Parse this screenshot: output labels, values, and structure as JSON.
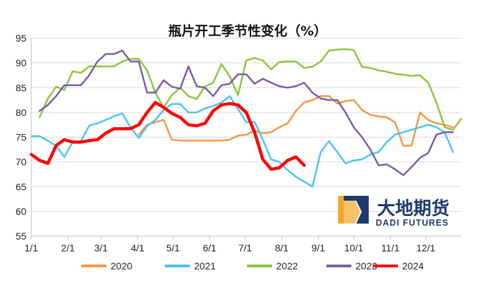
{
  "chart_data": {
    "type": "line",
    "title": "瓶片开工季节性变化（%）",
    "xlabel": "",
    "ylabel": "",
    "ylim": [
      55,
      95
    ],
    "yticks": [
      55,
      60,
      65,
      70,
      75,
      80,
      85,
      90,
      95
    ],
    "xlim": [
      0,
      52
    ],
    "xticks": [
      {
        "label": "1/1",
        "week": 0
      },
      {
        "label": "2/1",
        "week": 4.43
      },
      {
        "label": "3/1",
        "week": 8.43
      },
      {
        "label": "4/1",
        "week": 12.86
      },
      {
        "label": "5/1",
        "week": 17.14
      },
      {
        "label": "6/1",
        "week": 21.57
      },
      {
        "label": "7/1",
        "week": 25.86
      },
      {
        "label": "8/1",
        "week": 30.29
      },
      {
        "label": "9/1",
        "week": 34.71
      },
      {
        "label": "10/1",
        "week": 39
      },
      {
        "label": "11/1",
        "week": 43.43
      },
      {
        "label": "12/1",
        "week": 47.71
      }
    ],
    "grid": "horizontal",
    "legend_position": "bottom",
    "series": [
      {
        "name": "2020",
        "color": "#f79646",
        "width": 2.5,
        "x": [
          13,
          14,
          15,
          16,
          17,
          18,
          19,
          20,
          21,
          22,
          23,
          24,
          25,
          26,
          27,
          28,
          29,
          30,
          31,
          32,
          33,
          34,
          35,
          36,
          37,
          38,
          39,
          40,
          41,
          42,
          43,
          44,
          45,
          46,
          47,
          48,
          49,
          50,
          51
        ],
        "y": [
          75.5,
          77.5,
          78,
          78.5,
          74.5,
          74.3,
          74.3,
          74.3,
          74.3,
          74.3,
          74.3,
          74.5,
          75.3,
          75.5,
          76.3,
          75.8,
          76,
          77,
          77.8,
          80.3,
          82,
          82.5,
          83.3,
          83.3,
          81.8,
          82.3,
          82.5,
          80.5,
          79.5,
          79.2,
          79,
          78,
          73.2,
          73.3,
          80,
          78.5,
          77.8,
          77.5,
          77
        ]
      },
      {
        "name": "2021",
        "color": "#4dc3f5",
        "width": 2.5,
        "x": [
          0,
          1,
          2,
          3,
          4,
          5,
          6,
          7,
          8,
          9,
          10,
          11,
          12,
          13,
          14,
          15,
          16,
          17,
          18,
          19,
          20,
          21,
          22,
          23,
          24,
          25,
          26,
          27,
          28,
          29,
          30,
          31,
          32,
          33,
          34,
          35,
          36,
          37,
          38,
          39,
          40,
          41,
          42,
          43,
          44,
          45,
          46,
          47,
          48,
          49,
          50,
          51
        ],
        "y": [
          75.2,
          75.2,
          74.3,
          73.2,
          71,
          74,
          74.2,
          77.3,
          77.8,
          78.5,
          79.2,
          79.8,
          77,
          74.8,
          77.2,
          78.5,
          80.5,
          81.7,
          81.7,
          80,
          80,
          80.8,
          81.3,
          82,
          83.3,
          80.7,
          78,
          78.1,
          74.5,
          70.5,
          70,
          68.3,
          67,
          66,
          65,
          72,
          74.2,
          72,
          69.7,
          70.3,
          70.5,
          71.5,
          72,
          74,
          75.5,
          76,
          76.5,
          77,
          77.5,
          77,
          76,
          72
        ]
      },
      {
        "name": "2022",
        "color": "#8dc63f",
        "width": 2.5,
        "x": [
          1,
          2,
          3,
          4,
          5,
          6,
          7,
          8,
          9,
          10,
          11,
          12,
          13,
          14,
          15,
          16,
          17,
          18,
          19,
          20,
          21,
          22,
          23,
          24,
          25,
          26,
          27,
          28,
          29,
          30,
          31,
          32,
          33,
          34,
          35,
          36,
          37,
          38,
          39,
          40,
          41,
          42,
          43,
          44,
          45,
          46,
          47,
          48,
          49,
          50,
          51,
          52
        ],
        "y": [
          79,
          82.8,
          85.2,
          84.5,
          88.3,
          88,
          89.3,
          89.3,
          89.3,
          89.3,
          90.3,
          90.8,
          90.8,
          88.5,
          84,
          81,
          83.5,
          85,
          83.3,
          82.7,
          85.2,
          86,
          89.8,
          87.3,
          83.5,
          90.5,
          91,
          90.5,
          88.7,
          90.2,
          90.3,
          90.3,
          89,
          89.2,
          90.3,
          92.5,
          92.7,
          92.8,
          92.6,
          89.2,
          89,
          88.5,
          88.2,
          87.8,
          87.6,
          87.4,
          87.5,
          86,
          82,
          77,
          76.5,
          78.7
        ]
      },
      {
        "name": "2023",
        "color": "#7b5ea7",
        "width": 2.5,
        "x": [
          1,
          2,
          3,
          4,
          5,
          6,
          7,
          8,
          9,
          10,
          11,
          12,
          13,
          14,
          15,
          16,
          17,
          18,
          19,
          20,
          21,
          22,
          23,
          24,
          25,
          26,
          27,
          28,
          29,
          30,
          31,
          32,
          33,
          34,
          35,
          36,
          37,
          38,
          39,
          40,
          41,
          42,
          43,
          44,
          45,
          46,
          47,
          48,
          49,
          50,
          51
        ],
        "y": [
          80.3,
          81.5,
          83.3,
          85.5,
          85.5,
          85.5,
          87.5,
          90.3,
          91.8,
          91.8,
          92.5,
          90.3,
          90.3,
          84,
          84,
          86.5,
          85.2,
          84.8,
          89.3,
          85.3,
          85,
          83.3,
          85.5,
          85.8,
          87.7,
          87.7,
          85.8,
          86.8,
          86,
          85.3,
          85,
          85.3,
          86,
          84,
          82.8,
          82.5,
          82.5,
          80,
          77,
          75,
          72.5,
          69.3,
          69.5,
          68.5,
          67.3,
          69,
          70.8,
          71.8,
          75.5,
          76,
          76
        ]
      },
      {
        "name": "2024",
        "color": "#ff0000",
        "width": 4.5,
        "x": [
          0,
          1,
          2,
          3,
          4,
          5,
          6,
          7,
          8,
          9,
          10,
          11,
          12,
          13,
          14,
          15,
          16,
          17,
          18,
          19,
          20,
          21,
          22,
          23,
          24,
          25,
          26,
          27,
          28,
          29,
          30,
          31,
          32,
          33,
          34,
          35
        ],
        "y": [
          71.5,
          70.3,
          69.7,
          73.3,
          74.5,
          74,
          74,
          74.3,
          74.5,
          75.8,
          76.7,
          76.7,
          76.7,
          77.5,
          80,
          82,
          81,
          79.8,
          79,
          77.5,
          77.3,
          77.8,
          80.3,
          81.5,
          81.8,
          81.5,
          80,
          76,
          70.5,
          68.5,
          68.8,
          70.3,
          71,
          69.3,
          null,
          null
        ]
      }
    ]
  },
  "logo": {
    "name_cn": "大地期货",
    "name_en": "DADI FUTURES"
  }
}
